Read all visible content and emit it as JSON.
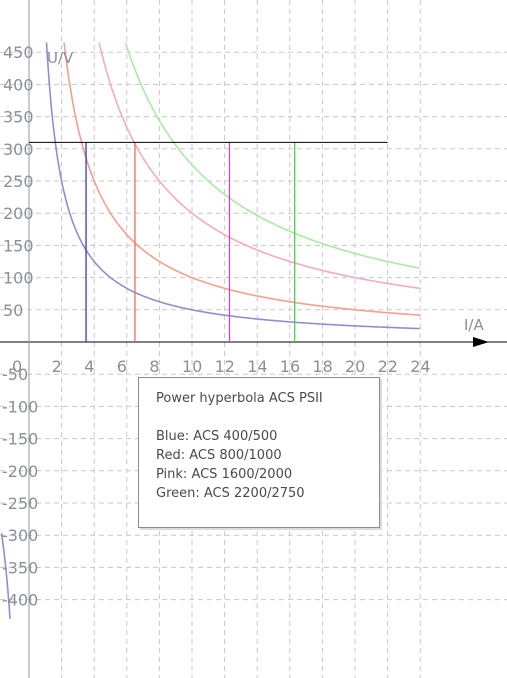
{
  "chart_data": {
    "type": "line",
    "title": "Power hyperbola ACS PSII",
    "xlabel": "I/A",
    "ylabel": "U/V",
    "xlim": [
      -1.7,
      24
    ],
    "ylim": [
      -430,
      465
    ],
    "x_ticks": [
      0,
      2,
      4,
      6,
      8,
      10,
      12,
      14,
      16,
      18,
      20,
      22,
      24
    ],
    "x_tick_labels": [
      "0",
      "2",
      "4",
      "6",
      "8",
      "10",
      "12",
      "14",
      "16",
      "18",
      "20",
      "22",
      "24"
    ],
    "y_ticks": [
      450,
      400,
      350,
      300,
      250,
      200,
      150,
      100,
      50,
      -50,
      -100,
      -150,
      -200,
      -250,
      -300,
      -350,
      -400
    ],
    "y_tick_labels": [
      "450",
      "400",
      "350",
      "300",
      "250",
      "200",
      "150",
      "100",
      "50",
      "-50",
      "-100",
      "-150",
      "-200",
      "-250",
      "-300",
      "-350",
      "-400"
    ],
    "grid": true,
    "reference_line": {
      "y": 310,
      "x_start": 0,
      "x_end": 22,
      "color": "#000000"
    },
    "legend_title": "Power hyperbola ACS PSII",
    "legend_entries": [
      "Blue: ACS 400/500",
      "Red: ACS 800/1000",
      "Pink: ACS 1600/2000",
      "Green: ACS 2200/2750"
    ],
    "series": [
      {
        "name": "ACS 400/500",
        "color_name": "Blue",
        "color": "#8c90d0",
        "marker_color": "#3838c8",
        "power_va": 500,
        "max_current": 3.5
      },
      {
        "name": "ACS 800/1000",
        "color_name": "Red",
        "color": "#f5a08a",
        "marker_color": "#e8705e",
        "power_va": 1000,
        "max_current": 6.5
      },
      {
        "name": "ACS 1600/2000",
        "color_name": "Pink",
        "color": "#f5a8c8",
        "marker_color": "#c848c0",
        "power_va": 2000,
        "max_current": 12.3
      },
      {
        "name": "ACS 2200/2750",
        "color_name": "Green",
        "color": "#a8eca0",
        "marker_color": "#48d048",
        "power_va": 2750,
        "max_current": 16.3
      }
    ]
  }
}
